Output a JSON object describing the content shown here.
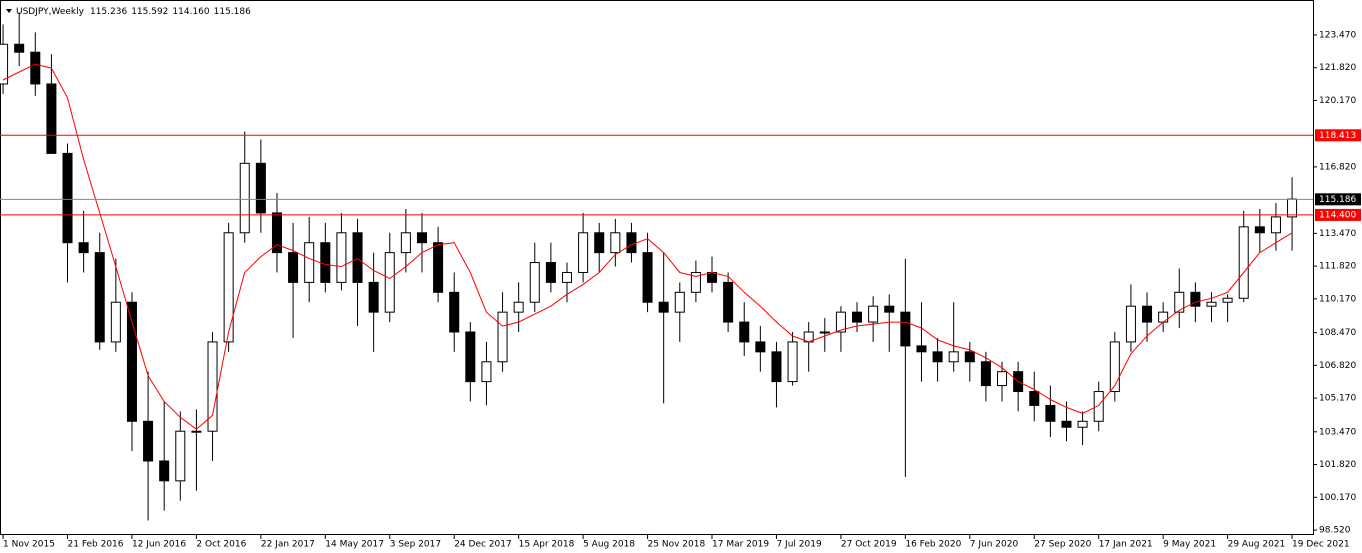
{
  "chart_data": {
    "type": "candlestick",
    "symbol": "USDJPY,Weekly",
    "header_values": [
      "115.236",
      "115.592",
      "114.160",
      "115.186"
    ],
    "up_color": "#ffffff",
    "down_color": "#000000",
    "wick_color": "#000000",
    "ylim": [
      98.27,
      125.13
    ],
    "xlim": [
      -0.19,
      81.3
    ],
    "yticks": [
      {
        "value": 123.47,
        "label": "123.470"
      },
      {
        "value": 121.82,
        "label": "121.820"
      },
      {
        "value": 120.17,
        "label": "120.170"
      },
      {
        "value": 116.82,
        "label": "116.820"
      },
      {
        "value": 113.47,
        "label": "113.470"
      },
      {
        "value": 111.82,
        "label": "111.820"
      },
      {
        "value": 110.17,
        "label": "110.170"
      },
      {
        "value": 108.47,
        "label": "108.470"
      },
      {
        "value": 106.82,
        "label": "106.820"
      },
      {
        "value": 105.17,
        "label": "105.170"
      },
      {
        "value": 103.47,
        "label": "103.470"
      },
      {
        "value": 101.82,
        "label": "101.820"
      },
      {
        "value": 100.17,
        "label": "100.170"
      },
      {
        "value": 98.52,
        "label": "98.520"
      }
    ],
    "xticks": [
      {
        "value": 0,
        "label": "1 Nov 2015"
      },
      {
        "value": 4,
        "label": "21 Feb 2016"
      },
      {
        "value": 8,
        "label": "12 Jun 2016"
      },
      {
        "value": 12,
        "label": "2 Oct 2016"
      },
      {
        "value": 16,
        "label": "22 Jan 2017"
      },
      {
        "value": 20,
        "label": "14 May 2017"
      },
      {
        "value": 24,
        "label": "3 Sep 2017"
      },
      {
        "value": 28,
        "label": "24 Dec 2017"
      },
      {
        "value": 32,
        "label": "15 Apr 2018"
      },
      {
        "value": 36,
        "label": "5 Aug 2018"
      },
      {
        "value": 40,
        "label": "25 Nov 2018"
      },
      {
        "value": 44,
        "label": "17 Mar 2019"
      },
      {
        "value": 48,
        "label": "7 Jul 2019"
      },
      {
        "value": 52,
        "label": "27 Oct 2019"
      },
      {
        "value": 56,
        "label": "16 Feb 2020"
      },
      {
        "value": 60,
        "label": "7 Jun 2020"
      },
      {
        "value": 64,
        "label": "27 Sep 2020"
      },
      {
        "value": 68,
        "label": "17 Jan 2021"
      },
      {
        "value": 72,
        "label": "9 May 2021"
      },
      {
        "value": 76,
        "label": "29 Aug 2021"
      },
      {
        "value": 80,
        "label": "19 Dec 2021"
      }
    ],
    "hlines": [
      {
        "value": 118.413,
        "label": "118.413",
        "color": "#ff0000"
      },
      {
        "value": 115.186,
        "label": "115.186",
        "color": "#778899"
      },
      {
        "value": 114.4,
        "label": "114.400",
        "color": "#ff0000"
      }
    ],
    "open": [
      121.0,
      123.0,
      122.6,
      121.0,
      117.5,
      113.0,
      112.5,
      108.0,
      110.0,
      104.0,
      102.0,
      101.0,
      103.5,
      103.5,
      108.0,
      113.5,
      117.0,
      114.5,
      112.5,
      111.0,
      113.0,
      111.0,
      113.5,
      111.0,
      109.5,
      112.5,
      113.5,
      113.0,
      110.5,
      108.5,
      106.0,
      107.0,
      109.5,
      110.0,
      112.0,
      111.0,
      111.5,
      113.5,
      112.5,
      113.5,
      112.5,
      110.0,
      109.5,
      110.5,
      111.5,
      111.0,
      109.0,
      108.0,
      107.5,
      106.0,
      108.0,
      108.5,
      108.5,
      109.5,
      109.0,
      109.8,
      109.5,
      107.8,
      107.5,
      107.0,
      107.5,
      107.0,
      105.8,
      106.5,
      105.5,
      104.8,
      104.0,
      103.7,
      104.0,
      105.5,
      108.0,
      109.8,
      109.0,
      109.5,
      110.5,
      109.8,
      110.0,
      110.2,
      113.8,
      113.5,
      114.3
    ],
    "high": [
      124.0,
      124.6,
      123.6,
      122.5,
      118.0,
      114.6,
      113.5,
      112.2,
      110.5,
      106.5,
      105.0,
      104.5,
      104.6,
      108.5,
      114.0,
      118.6,
      118.2,
      115.5,
      114.0,
      114.3,
      114.0,
      114.5,
      114.2,
      112.5,
      113.5,
      114.7,
      114.5,
      113.8,
      111.5,
      109.0,
      108.0,
      110.5,
      111.0,
      113.0,
      113.0,
      112.0,
      114.5,
      114.0,
      114.2,
      114.0,
      113.5,
      112.5,
      111.0,
      112.1,
      112.3,
      111.5,
      110.0,
      108.8,
      108.0,
      108.5,
      109.0,
      109.2,
      109.8,
      110.0,
      110.3,
      110.4,
      112.2,
      110.0,
      108.2,
      110.0,
      108.0,
      107.5,
      107.0,
      107.0,
      106.5,
      105.8,
      105.0,
      104.5,
      106.0,
      108.5,
      110.9,
      110.5,
      110.0,
      111.7,
      111.0,
      110.5,
      110.4,
      114.6,
      114.7,
      115.0,
      116.3
    ],
    "low": [
      120.5,
      121.9,
      120.4,
      117.5,
      111.0,
      111.5,
      107.6,
      107.5,
      102.5,
      99.0,
      99.5,
      100.0,
      100.5,
      102.0,
      107.5,
      113.0,
      113.5,
      111.5,
      108.2,
      110.0,
      110.5,
      110.6,
      108.8,
      107.5,
      109.0,
      111.5,
      111.5,
      110.0,
      107.5,
      105.0,
      104.8,
      106.5,
      108.5,
      109.5,
      110.5,
      110.0,
      111.0,
      111.5,
      111.8,
      112.0,
      109.5,
      104.9,
      108.0,
      110.0,
      110.5,
      108.5,
      107.3,
      106.5,
      104.7,
      105.8,
      106.5,
      107.5,
      107.5,
      108.5,
      108.0,
      107.5,
      101.2,
      106.0,
      106.0,
      106.5,
      106.0,
      105.0,
      105.0,
      104.5,
      104.0,
      103.2,
      103.0,
      102.8,
      103.5,
      105.0,
      107.5,
      108.0,
      108.5,
      108.7,
      109.0,
      109.0,
      109.0,
      110.0,
      112.5,
      112.6,
      112.6
    ],
    "close": [
      123.0,
      122.6,
      121.0,
      117.5,
      113.0,
      112.5,
      108.0,
      110.0,
      104.0,
      102.0,
      101.0,
      103.5,
      103.5,
      108.0,
      113.5,
      117.0,
      114.5,
      112.5,
      111.0,
      113.0,
      111.0,
      113.5,
      111.0,
      109.5,
      112.5,
      113.5,
      113.0,
      110.5,
      108.5,
      106.0,
      107.0,
      109.5,
      110.0,
      112.0,
      111.0,
      111.5,
      113.5,
      112.5,
      113.5,
      112.5,
      110.0,
      109.5,
      110.5,
      111.5,
      111.0,
      109.0,
      108.0,
      107.5,
      106.0,
      108.0,
      108.5,
      108.5,
      109.5,
      109.0,
      109.8,
      109.5,
      107.8,
      107.5,
      107.0,
      107.5,
      107.0,
      105.8,
      106.5,
      105.5,
      104.8,
      104.0,
      103.7,
      104.0,
      105.5,
      108.0,
      109.8,
      109.0,
      109.5,
      110.5,
      109.8,
      110.0,
      110.2,
      113.8,
      113.5,
      114.3,
      115.2
    ],
    "ma": {
      "color": "#ff0000",
      "values": [
        121.2,
        121.6,
        122.0,
        121.8,
        120.3,
        117.2,
        114.5,
        111.8,
        109.0,
        106.3,
        105.0,
        104.2,
        103.6,
        104.3,
        108.5,
        111.5,
        112.3,
        112.9,
        112.6,
        112.2,
        111.9,
        111.8,
        112.2,
        111.6,
        111.2,
        111.8,
        112.5,
        112.9,
        113.0,
        111.5,
        109.5,
        108.8,
        109.0,
        109.4,
        109.8,
        110.4,
        110.9,
        111.5,
        112.4,
        112.9,
        113.2,
        112.5,
        111.5,
        111.3,
        111.5,
        111.3,
        110.5,
        109.8,
        109.0,
        108.3,
        108.0,
        108.3,
        108.6,
        108.8,
        108.9,
        109.0,
        109.0,
        108.7,
        108.1,
        107.8,
        107.6,
        107.2,
        106.7,
        106.0,
        105.6,
        105.1,
        104.7,
        104.4,
        104.8,
        105.8,
        107.4,
        108.3,
        109.0,
        109.6,
        110.0,
        110.2,
        110.5,
        111.5,
        112.5,
        113.0,
        113.5
      ]
    }
  }
}
